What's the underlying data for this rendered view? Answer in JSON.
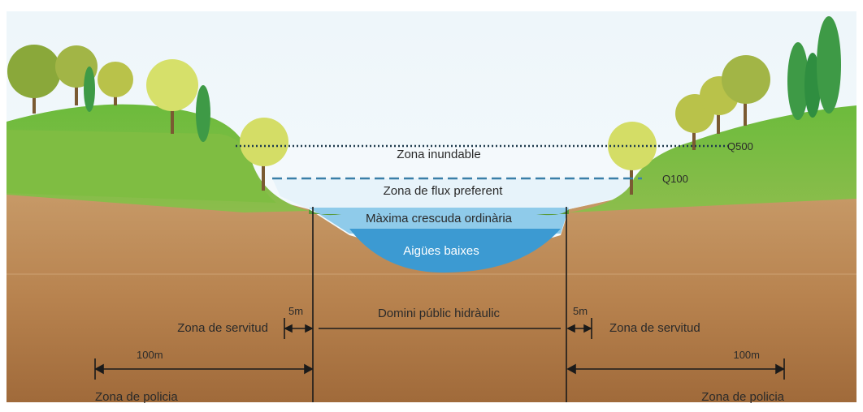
{
  "diagram": {
    "zones": {
      "flood": "Zona inundable",
      "preferent": "Zona de flux preferent",
      "ordinary": "Màxima crescuda ordinària",
      "low": "Aigües baixes"
    },
    "levels": {
      "q500": "Q500",
      "q100": "Q100"
    },
    "public": "Domini públic hidràulic",
    "left": {
      "easement_width": "5m",
      "easement": "Zona de servitud",
      "police_width": "100m",
      "police": "Zona de policia"
    },
    "right": {
      "easement_width": "5m",
      "easement": "Zona de servitud",
      "police_width": "100m",
      "police": "Zona de policia"
    }
  }
}
